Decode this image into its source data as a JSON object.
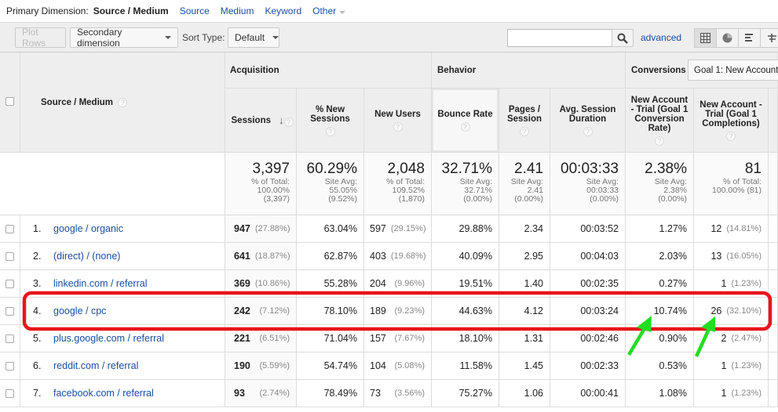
{
  "primary_dimension": {
    "label": "Primary Dimension:",
    "selected": "Source / Medium",
    "options": [
      "Source",
      "Medium",
      "Keyword",
      "Other"
    ]
  },
  "toolbar": {
    "plot_rows": "Plot Rows",
    "secondary_dimension": "Secondary dimension",
    "sort_type_label": "Sort Type:",
    "sort_type_value": "Default",
    "search_value": "",
    "advanced": "advanced",
    "view_icons": [
      "grid-icon",
      "pie-icon",
      "bar-icon",
      "pivot-icon"
    ]
  },
  "table": {
    "dimension_header": "Source / Medium",
    "groups": {
      "acquisition": "Acquisition",
      "behavior": "Behavior",
      "conversions": "Conversions",
      "goal_select": "Goal 1: New Account -"
    },
    "columns": [
      "Sessions",
      "% New Sessions",
      "New Users",
      "Bounce Rate",
      "Pages / Session",
      "Avg. Session Duration",
      "New Account - Trial (Goal 1 Conversion Rate)",
      "New Account - Trial (Goal 1 Completions)"
    ],
    "totals": [
      {
        "value": "3,397",
        "l1": "% of Total:",
        "l2": "100.00%",
        "l3": "(3,397)"
      },
      {
        "value": "60.29%",
        "l1": "Site Avg:",
        "l2": "55.05%",
        "l3": "(9.52%)"
      },
      {
        "value": "2,048",
        "l1": "% of Total:",
        "l2": "109.52%",
        "l3": "(1,870)"
      },
      {
        "value": "32.71%",
        "l1": "Site Avg:",
        "l2": "32.71%",
        "l3": "(0.00%)"
      },
      {
        "value": "2.41",
        "l1": "Site Avg:",
        "l2": "2.41",
        "l3": "(0.00%)"
      },
      {
        "value": "00:03:33",
        "l1": "Site Avg:",
        "l2": "00:03:33",
        "l3": "(0.00%)"
      },
      {
        "value": "2.38%",
        "l1": "Site Avg:",
        "l2": "2.38%",
        "l3": "(0.00%)"
      },
      {
        "value": "81",
        "l1": "% of Total:",
        "l2": "100.00% (81)",
        "l3": ""
      }
    ],
    "rows": [
      {
        "n": "1.",
        "source": "google / organic",
        "sessions": "947",
        "sessions_pct": "(27.88%)",
        "new_sessions": "63.04%",
        "new_users": "597",
        "new_users_pct": "(29.15%)",
        "bounce": "29.88%",
        "pages": "2.34",
        "duration": "00:03:52",
        "conv_rate": "1.27%",
        "completions": "12",
        "completions_pct": "(14.81%)"
      },
      {
        "n": "2.",
        "source": "(direct) / (none)",
        "sessions": "641",
        "sessions_pct": "(18.87%)",
        "new_sessions": "62.87%",
        "new_users": "403",
        "new_users_pct": "(19.68%)",
        "bounce": "40.09%",
        "pages": "2.95",
        "duration": "00:04:03",
        "conv_rate": "2.03%",
        "completions": "13",
        "completions_pct": "(16.05%)"
      },
      {
        "n": "3.",
        "source": "linkedin.com / referral",
        "sessions": "369",
        "sessions_pct": "(10.86%)",
        "new_sessions": "55.28%",
        "new_users": "204",
        "new_users_pct": "(9.96%)",
        "bounce": "19.51%",
        "pages": "1.40",
        "duration": "00:02:35",
        "conv_rate": "0.27%",
        "completions": "1",
        "completions_pct": "(1.23%)"
      },
      {
        "n": "4.",
        "source": "google / cpc",
        "sessions": "242",
        "sessions_pct": "(7.12%)",
        "new_sessions": "78.10%",
        "new_users": "189",
        "new_users_pct": "(9.23%)",
        "bounce": "44.63%",
        "pages": "4.12",
        "duration": "00:03:24",
        "conv_rate": "10.74%",
        "completions": "26",
        "completions_pct": "(32.10%)"
      },
      {
        "n": "5.",
        "source": "plus.google.com / referral",
        "sessions": "221",
        "sessions_pct": "(6.51%)",
        "new_sessions": "71.04%",
        "new_users": "157",
        "new_users_pct": "(7.67%)",
        "bounce": "18.10%",
        "pages": "1.31",
        "duration": "00:02:46",
        "conv_rate": "0.90%",
        "completions": "2",
        "completions_pct": "(2.47%)"
      },
      {
        "n": "6.",
        "source": "reddit.com / referral",
        "sessions": "190",
        "sessions_pct": "(5.59%)",
        "new_sessions": "54.74%",
        "new_users": "104",
        "new_users_pct": "(5.08%)",
        "bounce": "11.58%",
        "pages": "1.45",
        "duration": "00:02:33",
        "conv_rate": "0.53%",
        "completions": "1",
        "completions_pct": "(1.23%)"
      },
      {
        "n": "7.",
        "source": "facebook.com / referral",
        "sessions": "93",
        "sessions_pct": "(2.74%)",
        "new_sessions": "78.49%",
        "new_users": "73",
        "new_users_pct": "(3.56%)",
        "bounce": "75.27%",
        "pages": "1.06",
        "duration": "00:00:41",
        "conv_rate": "1.08%",
        "completions": "1",
        "completions_pct": "(1.23%)"
      }
    ]
  },
  "annotation_colors": {
    "highlight_box": "#e8141b",
    "arrows": "#22dd22"
  },
  "colors": {
    "link": "#1a4fa0",
    "header_bg": "#eeeeee"
  }
}
